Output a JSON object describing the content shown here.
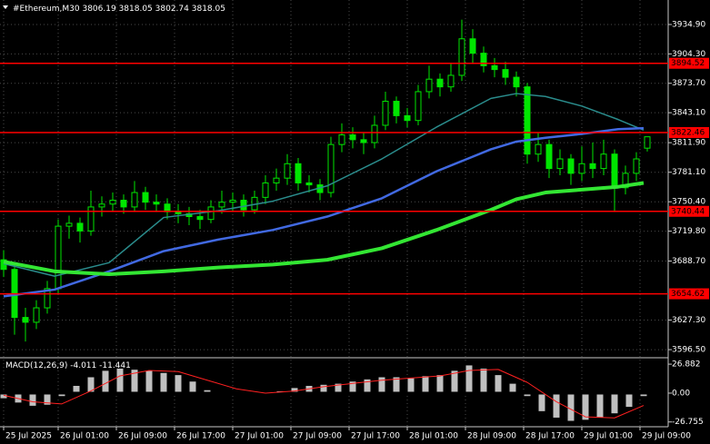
{
  "chart_data": [
    {
      "type": "candlestick",
      "title": "#Ethereum,M30",
      "x": [
        0,
        3,
        6,
        9,
        12,
        15,
        18,
        21,
        24,
        27,
        30,
        33,
        36,
        39,
        42,
        45,
        48,
        51,
        54,
        57,
        60,
        63,
        66,
        69,
        72,
        75,
        78,
        81,
        84,
        87,
        90,
        93,
        96,
        99,
        102,
        105,
        108,
        111,
        114,
        117,
        120,
        123,
        126,
        129,
        132,
        135,
        138,
        141,
        144,
        147,
        150,
        153,
        156,
        159,
        162,
        165,
        168,
        171,
        174,
        177
      ],
      "ohlc": [
        [
          3690,
          3700,
          3672,
          3680
        ],
        [
          3680,
          3684,
          3612,
          3630
        ],
        [
          3630,
          3640,
          3605,
          3625
        ],
        [
          3625,
          3648,
          3618,
          3640
        ],
        [
          3640,
          3668,
          3634,
          3660
        ],
        [
          3660,
          3732,
          3655,
          3725
        ],
        [
          3725,
          3736,
          3712,
          3728
        ],
        [
          3728,
          3734,
          3708,
          3720
        ],
        [
          3720,
          3762,
          3715,
          3745
        ],
        [
          3745,
          3756,
          3735,
          3748
        ],
        [
          3748,
          3760,
          3740,
          3752
        ],
        [
          3752,
          3758,
          3738,
          3745
        ],
        [
          3745,
          3772,
          3740,
          3760
        ],
        [
          3760,
          3766,
          3742,
          3750
        ],
        [
          3750,
          3758,
          3740,
          3748
        ],
        [
          3748,
          3754,
          3732,
          3740
        ],
        [
          3740,
          3748,
          3728,
          3738
        ],
        [
          3738,
          3745,
          3726,
          3735
        ],
        [
          3735,
          3742,
          3722,
          3732
        ],
        [
          3732,
          3752,
          3728,
          3745
        ],
        [
          3745,
          3762,
          3738,
          3750
        ],
        [
          3750,
          3760,
          3740,
          3752
        ],
        [
          3752,
          3758,
          3735,
          3742
        ],
        [
          3742,
          3762,
          3738,
          3755
        ],
        [
          3755,
          3778,
          3748,
          3770
        ],
        [
          3770,
          3785,
          3762,
          3775
        ],
        [
          3775,
          3800,
          3768,
          3790
        ],
        [
          3790,
          3796,
          3762,
          3770
        ],
        [
          3770,
          3778,
          3760,
          3768
        ],
        [
          3768,
          3774,
          3752,
          3760
        ],
        [
          3760,
          3818,
          3755,
          3810
        ],
        [
          3810,
          3832,
          3802,
          3820
        ],
        [
          3820,
          3828,
          3806,
          3815
        ],
        [
          3815,
          3822,
          3800,
          3812
        ],
        [
          3812,
          3840,
          3806,
          3830
        ],
        [
          3830,
          3865,
          3825,
          3855
        ],
        [
          3855,
          3860,
          3832,
          3840
        ],
        [
          3840,
          3848,
          3828,
          3835
        ],
        [
          3835,
          3872,
          3830,
          3865
        ],
        [
          3865,
          3892,
          3858,
          3878
        ],
        [
          3878,
          3884,
          3860,
          3870
        ],
        [
          3870,
          3895,
          3865,
          3882
        ],
        [
          3882,
          3940,
          3876,
          3920
        ],
        [
          3920,
          3930,
          3895,
          3905
        ],
        [
          3905,
          3912,
          3885,
          3892
        ],
        [
          3892,
          3900,
          3880,
          3888
        ],
        [
          3888,
          3896,
          3872,
          3880
        ],
        [
          3880,
          3886,
          3860,
          3870
        ],
        [
          3870,
          3874,
          3790,
          3800
        ],
        [
          3800,
          3822,
          3792,
          3810
        ],
        [
          3810,
          3815,
          3775,
          3785
        ],
        [
          3785,
          3805,
          3778,
          3795
        ],
        [
          3795,
          3800,
          3768,
          3780
        ],
        [
          3780,
          3808,
          3772,
          3790
        ],
        [
          3790,
          3812,
          3775,
          3785
        ],
        [
          3785,
          3815,
          3778,
          3800
        ],
        [
          3800,
          3805,
          3740,
          3765
        ],
        [
          3765,
          3788,
          3758,
          3780
        ],
        [
          3780,
          3802,
          3772,
          3795
        ],
        [
          3806.19,
          3818.05,
          3802.74,
          3818.05
        ]
      ],
      "color": "#00e600",
      "xlim": [
        -1,
        182.75
      ],
      "xticks": [
        {
          "value": 0,
          "label": "25 Jul 2025"
        },
        {
          "value": 15,
          "label": "26 Jul 01:00"
        },
        {
          "value": 31,
          "label": "26 Jul 09:00"
        },
        {
          "value": 47,
          "label": "26 Jul 17:00"
        },
        {
          "value": 63,
          "label": "27 Jul 01:00"
        },
        {
          "value": 79,
          "label": "27 Jul 09:00"
        },
        {
          "value": 95,
          "label": "27 Jul 17:00"
        },
        {
          "value": 111,
          "label": "28 Jul 01:00"
        },
        {
          "value": 127,
          "label": "28 Jul 09:00"
        },
        {
          "value": 143,
          "label": "28 Jul 17:00"
        },
        {
          "value": 159,
          "label": "29 Jul 01:00"
        },
        {
          "value": 175,
          "label": "29 Jul 09:00"
        }
      ],
      "ylim": [
        3589.0,
        3960.4
      ],
      "yticks": [
        {
          "value": 3934.9,
          "label": "3934.90"
        },
        {
          "value": 3904.3,
          "label": "3904.30"
        },
        {
          "value": 3873.7,
          "label": "3873.70"
        },
        {
          "value": 3843.1,
          "label": "3843.10"
        },
        {
          "value": 3811.9,
          "label": "3811.90"
        },
        {
          "value": 3781.1,
          "label": "3781.10"
        },
        {
          "value": 3750.4,
          "label": "3750.40"
        },
        {
          "value": 3719.8,
          "label": "3719.80"
        },
        {
          "value": 3688.7,
          "label": "3688.70"
        },
        {
          "value": 3627.3,
          "label": "3627.30"
        },
        {
          "value": 3596.5,
          "label": "3596.50"
        }
      ],
      "grid": true,
      "moving_averages": [
        {
          "color": "#2a8c8c",
          "line_width": 1.5,
          "x": [
            0,
            14,
            29,
            44,
            59,
            74,
            89,
            104,
            119,
            134,
            141,
            149,
            159,
            169,
            176
          ],
          "values": [
            3686,
            3673,
            3687,
            3734,
            3741,
            3751,
            3767,
            3795,
            3828,
            3858,
            3863,
            3860,
            3850,
            3836,
            3825
          ]
        },
        {
          "color": "#4169e1",
          "line_width": 2.5,
          "x": [
            0,
            14,
            29,
            44,
            59,
            74,
            89,
            104,
            119,
            134,
            141,
            149,
            159,
            169,
            176
          ],
          "values": [
            3652,
            3659,
            3678,
            3699,
            3711,
            3721,
            3735,
            3754,
            3782,
            3805,
            3813,
            3817,
            3821,
            3826,
            3827
          ]
        },
        {
          "color": "#33e633",
          "line_width": 4,
          "x": [
            0,
            14,
            29,
            44,
            59,
            74,
            89,
            104,
            119,
            134,
            141,
            149,
            159,
            169,
            176
          ],
          "values": [
            3688,
            3678,
            3675,
            3678,
            3682,
            3685,
            3690,
            3702,
            3721,
            3742,
            3753,
            3760,
            3763,
            3766,
            3770
          ]
        }
      ],
      "levels": {
        "color": "#ff0000",
        "values": [
          3894.52,
          3822.46,
          3740.44,
          3654.62
        ]
      }
    },
    {
      "type": "macd",
      "title": "MACD(12,26,9)",
      "x": [
        0,
        4,
        8,
        12,
        16,
        20,
        24,
        28,
        32,
        36,
        40,
        44,
        48,
        52,
        56,
        60,
        64,
        68,
        72,
        76,
        80,
        84,
        88,
        92,
        96,
        100,
        104,
        108,
        112,
        116,
        120,
        124,
        128,
        132,
        136,
        140,
        144,
        148,
        152,
        156,
        160,
        164,
        168,
        172,
        176
      ],
      "values": [
        -6,
        -10,
        -13,
        -12,
        -4,
        8,
        16,
        22,
        24,
        23,
        22,
        20,
        18,
        12,
        4,
        0,
        -1,
        -2,
        0,
        3,
        6,
        8,
        9,
        10,
        12,
        14,
        16,
        16,
        15,
        17,
        18,
        22,
        27,
        24,
        18,
        10,
        -4,
        -18,
        -24,
        -27,
        -26,
        -24,
        -20,
        -14,
        -4.011
      ],
      "color": "#c0c0c0",
      "signal": {
        "color": "#ff2020",
        "x": [
          0,
          8,
          16,
          24,
          32,
          40,
          48,
          56,
          64,
          72,
          80,
          88,
          96,
          104,
          112,
          120,
          128,
          136,
          144,
          152,
          160,
          168,
          176
        ],
        "values": [
          -2,
          -8,
          -10,
          2,
          16,
          21,
          20,
          12,
          4,
          0,
          2,
          6,
          9,
          12,
          14,
          16,
          21,
          22,
          10,
          -8,
          -22,
          -23,
          -11.441
        ]
      },
      "ylim": [
        -31.2,
        32
      ],
      "yticks": [
        26.882,
        {
          "value": 0,
          "label": "0.00"
        },
        -26.755
      ]
    }
  ]
}
